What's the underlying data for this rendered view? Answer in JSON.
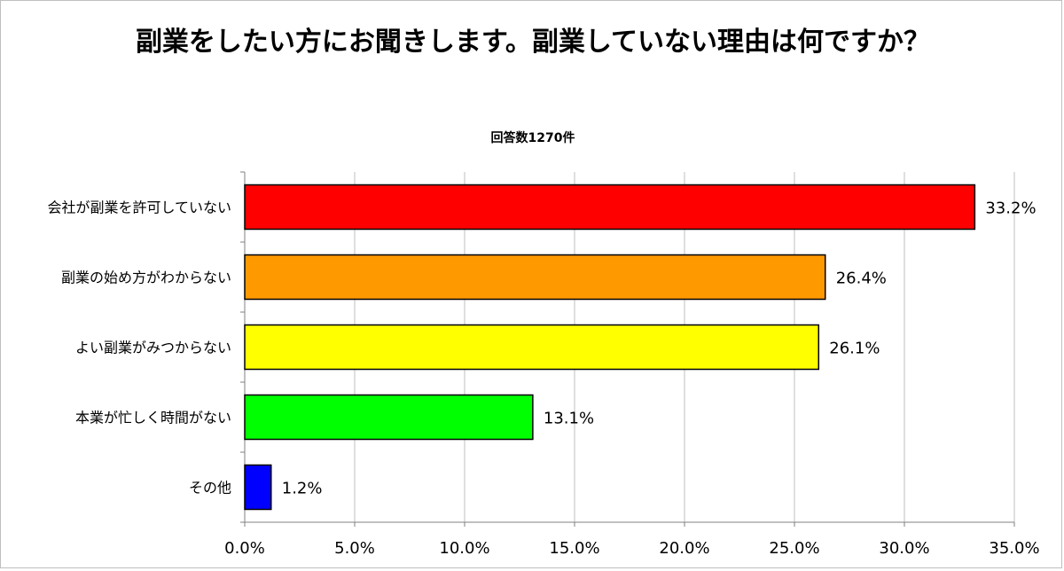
{
  "chart_data": {
    "type": "bar",
    "orientation": "horizontal",
    "title": "副業をしたい方にお聞きします。副業していない理由は何ですか？",
    "subtitle": "回答数1270件",
    "categories": [
      "会社が副業を許可していない",
      "副業の始め方がわからない",
      "よい副業がみつからない",
      "本業が忙しく時間がない",
      "その他"
    ],
    "values": [
      33.2,
      26.4,
      26.1,
      13.1,
      1.2
    ],
    "value_labels": [
      "33.2%",
      "26.4%",
      "26.1%",
      "13.1%",
      "1.2%"
    ],
    "colors": [
      "#ff0000",
      "#ff9900",
      "#ffff00",
      "#00ff00",
      "#0000ff"
    ],
    "xlim": [
      0,
      35
    ],
    "x_ticks": [
      0,
      5,
      10,
      15,
      20,
      25,
      30,
      35
    ],
    "x_tick_labels": [
      "0.0%",
      "5.0%",
      "10.0%",
      "15.0%",
      "20.0%",
      "25.0%",
      "30.0%",
      "35.0%"
    ],
    "xlabel": "",
    "ylabel": "",
    "grid": true,
    "legend": "none"
  }
}
